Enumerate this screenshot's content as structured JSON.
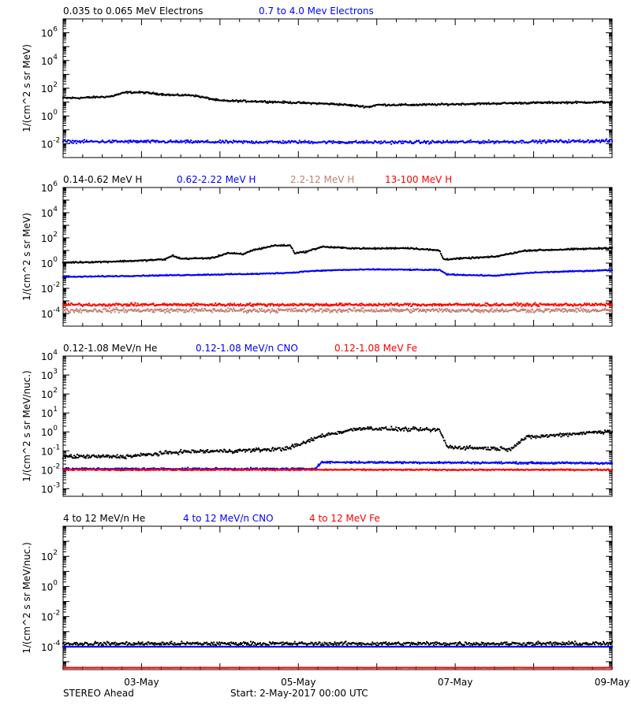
{
  "chart_data": [
    {
      "type": "scatter",
      "panel_id": "electrons",
      "ylabel": "1/(cm^2 s sr MeV)",
      "y_scale": "log",
      "ylim": [
        0.001,
        10000000
      ],
      "y_ticks": [
        {
          "value": 0.01,
          "base": "10",
          "exp": "-2"
        },
        {
          "value": 1,
          "base": "10",
          "exp": "0"
        },
        {
          "value": 100,
          "base": "10",
          "exp": "2"
        },
        {
          "value": 10000,
          "base": "10",
          "exp": "4"
        },
        {
          "value": 1000000,
          "base": "10",
          "exp": "6"
        }
      ],
      "series": [
        {
          "name": "0.035 to 0.065 MeV Electrons",
          "color": "#000000",
          "noise": 0.08,
          "points": [
            [
              0,
              1.3
            ],
            [
              0.2,
              1.3
            ],
            [
              0.6,
              1.4
            ],
            [
              0.8,
              1.7
            ],
            [
              1.0,
              1.7
            ],
            [
              1.4,
              1.5
            ],
            [
              1.65,
              1.5
            ],
            [
              2.0,
              1.1
            ],
            [
              2.5,
              1.05
            ],
            [
              3.0,
              0.95
            ],
            [
              3.5,
              0.85
            ],
            [
              3.9,
              0.65
            ],
            [
              4.0,
              0.8
            ],
            [
              4.5,
              0.8
            ],
            [
              5.0,
              0.85
            ],
            [
              6.0,
              0.95
            ],
            [
              7.0,
              1.0
            ]
          ]
        },
        {
          "name": "0.7 to 4.0 Mev Electrons",
          "color": "#0000ff",
          "noise": 0.13,
          "points": [
            [
              0,
              -1.85
            ],
            [
              1,
              -1.85
            ],
            [
              2,
              -1.88
            ],
            [
              3,
              -1.88
            ],
            [
              4,
              -1.9
            ],
            [
              5,
              -1.88
            ],
            [
              6,
              -1.85
            ],
            [
              7,
              -1.8
            ]
          ]
        }
      ]
    },
    {
      "type": "scatter",
      "panel_id": "protons",
      "ylabel": "1/(cm^2 s sr MeV)",
      "y_scale": "log",
      "ylim": [
        1e-05,
        1000000
      ],
      "y_ticks": [
        {
          "value": 0.0001,
          "base": "10",
          "exp": "-4"
        },
        {
          "value": 0.01,
          "base": "10",
          "exp": "-2"
        },
        {
          "value": 1,
          "base": "10",
          "exp": "0"
        },
        {
          "value": 100,
          "base": "10",
          "exp": "2"
        },
        {
          "value": 10000,
          "base": "10",
          "exp": "4"
        },
        {
          "value": 1000000,
          "base": "10",
          "exp": "6"
        }
      ],
      "series": [
        {
          "name": "0.14-0.62 MeV H",
          "color": "#000000",
          "noise": 0.07,
          "points": [
            [
              0,
              0.05
            ],
            [
              0.5,
              0.1
            ],
            [
              1.0,
              0.2
            ],
            [
              1.3,
              0.3
            ],
            [
              1.4,
              0.6
            ],
            [
              1.5,
              0.35
            ],
            [
              1.9,
              0.4
            ],
            [
              2.1,
              0.8
            ],
            [
              2.3,
              0.7
            ],
            [
              2.4,
              1.0
            ],
            [
              2.7,
              1.4
            ],
            [
              2.9,
              1.4
            ],
            [
              2.95,
              0.8
            ],
            [
              3.1,
              0.9
            ],
            [
              3.3,
              1.3
            ],
            [
              3.6,
              1.2
            ],
            [
              3.9,
              1.15
            ],
            [
              4.4,
              1.2
            ],
            [
              4.8,
              1.0
            ],
            [
              4.85,
              0.3
            ],
            [
              5.5,
              0.5
            ],
            [
              5.9,
              1.0
            ],
            [
              6.5,
              1.1
            ],
            [
              7.0,
              1.2
            ]
          ]
        },
        {
          "name": "0.62-2.22 MeV H",
          "color": "#0000ff",
          "noise": 0.05,
          "points": [
            [
              0,
              -1.1
            ],
            [
              1.0,
              -1.0
            ],
            [
              2.0,
              -0.9
            ],
            [
              2.5,
              -0.85
            ],
            [
              2.95,
              -0.75
            ],
            [
              3.1,
              -0.65
            ],
            [
              3.5,
              -0.55
            ],
            [
              4.0,
              -0.5
            ],
            [
              4.8,
              -0.55
            ],
            [
              4.9,
              -0.9
            ],
            [
              5.5,
              -1.0
            ],
            [
              6.0,
              -0.75
            ],
            [
              7.0,
              -0.55
            ]
          ]
        },
        {
          "name": "2.2-12 MeV H",
          "color": "#c08070",
          "noise": 0.2,
          "points": [
            [
              0,
              -3.75
            ],
            [
              7.0,
              -3.75
            ]
          ]
        },
        {
          "name": "13-100 MeV H",
          "color": "#ff0000",
          "noise": 0.14,
          "points": [
            [
              0,
              -3.3
            ],
            [
              7.0,
              -3.3
            ]
          ]
        }
      ]
    },
    {
      "type": "scatter",
      "panel_id": "heavy-low",
      "ylabel": "1/(cm^2 s sr MeV/nuc.)",
      "y_scale": "log",
      "ylim": [
        0.0004,
        10000
      ],
      "y_ticks": [
        {
          "value": 0.001,
          "base": "10",
          "exp": "-3"
        },
        {
          "value": 0.01,
          "base": "10",
          "exp": "-2"
        },
        {
          "value": 0.1,
          "base": "10",
          "exp": "-1"
        },
        {
          "value": 1,
          "base": "10",
          "exp": "0"
        },
        {
          "value": 10,
          "base": "10",
          "exp": "1"
        },
        {
          "value": 100,
          "base": "10",
          "exp": "2"
        },
        {
          "value": 1000,
          "base": "10",
          "exp": "3"
        },
        {
          "value": 10000,
          "base": "10",
          "exp": "4"
        }
      ],
      "series": [
        {
          "name": "0.12-1.08 MeV/n He",
          "color": "#000000",
          "noise": 0.12,
          "points": [
            [
              0,
              -1.3
            ],
            [
              0.8,
              -1.3
            ],
            [
              1.5,
              -1.05
            ],
            [
              2.2,
              -1.0
            ],
            [
              2.8,
              -0.9
            ],
            [
              3.0,
              -0.7
            ],
            [
              3.3,
              -0.2
            ],
            [
              3.8,
              0.2
            ],
            [
              4.2,
              0.15
            ],
            [
              4.8,
              0.1
            ],
            [
              4.9,
              -0.8
            ],
            [
              5.7,
              -0.9
            ],
            [
              5.9,
              -0.3
            ],
            [
              6.5,
              -0.1
            ],
            [
              7.0,
              0.05
            ]
          ]
        },
        {
          "name": "0.12-1.08 MeV/n CNO",
          "color": "#0000ff",
          "noise": 0.06,
          "points": [
            [
              0,
              -1.95
            ],
            [
              3.2,
              -1.95
            ],
            [
              3.3,
              -1.6
            ],
            [
              7.0,
              -1.65
            ]
          ]
        },
        {
          "name": "0.12-1.08 MeV Fe",
          "color": "#ff0000",
          "noise": 0.04,
          "points": [
            [
              0,
              -2.0
            ],
            [
              7.0,
              -2.0
            ]
          ]
        }
      ]
    },
    {
      "type": "scatter",
      "panel_id": "heavy-high",
      "ylabel": "1/(cm^2 s sr MeV/nuc.)",
      "y_scale": "log",
      "ylim": [
        3e-06,
        10000
      ],
      "y_ticks": [
        {
          "value": 0.0001,
          "base": "10",
          "exp": "-4"
        },
        {
          "value": 0.01,
          "base": "10",
          "exp": "-2"
        },
        {
          "value": 1,
          "base": "10",
          "exp": "0"
        },
        {
          "value": 100,
          "base": "10",
          "exp": "2"
        }
      ],
      "series": [
        {
          "name": "4 to 12 MeV/n He",
          "color": "#000000",
          "noise": 0.15,
          "points": [
            [
              0,
              -3.8
            ],
            [
              7.0,
              -3.8
            ]
          ]
        },
        {
          "name": "4 to 12 MeV/n CNO",
          "color": "#0000ff",
          "noise": 0.01,
          "points": [
            [
              0,
              -4.0
            ],
            [
              7.0,
              -4.0
            ]
          ]
        },
        {
          "name": "4 to 12 MeV Fe",
          "color": "#ff0000",
          "noise": 0.01,
          "points": [
            [
              0,
              -5.4
            ],
            [
              7.0,
              -5.4
            ]
          ]
        }
      ]
    }
  ],
  "x_axis": {
    "range_days": [
      0,
      7
    ],
    "tick_labels": [
      {
        "day": 1,
        "label": "03-May"
      },
      {
        "day": 3,
        "label": "05-May"
      },
      {
        "day": 5,
        "label": "07-May"
      },
      {
        "day": 7,
        "label": "09-May"
      }
    ]
  },
  "footer": {
    "spacecraft": "STEREO Ahead",
    "start_label": "Start:  2-May-2017 00:00 UTC"
  }
}
